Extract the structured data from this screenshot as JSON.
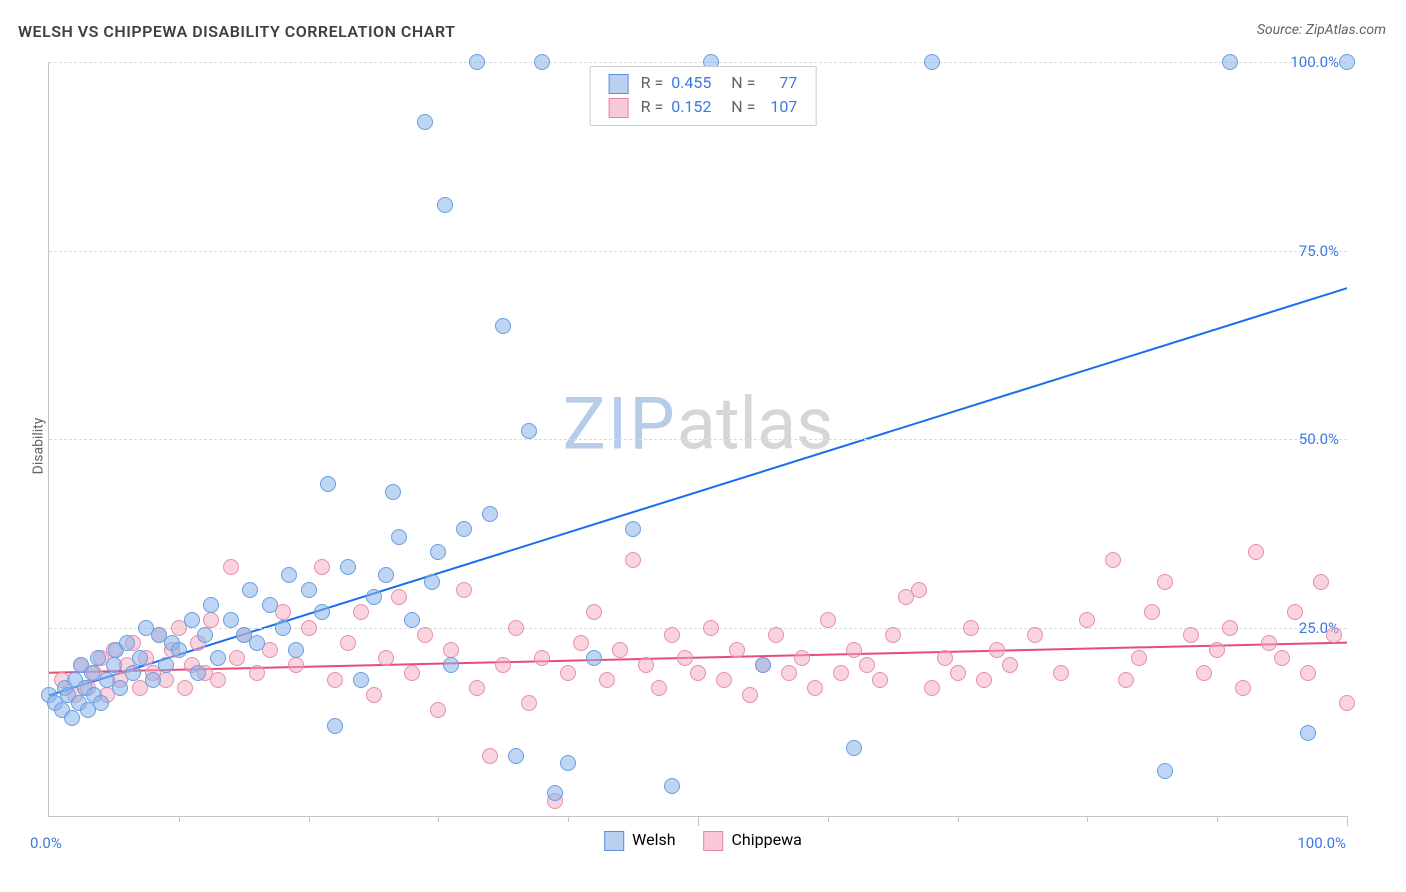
{
  "title": "WELSH VS CHIPPEWA DISABILITY CORRELATION CHART",
  "title_color": "#3c4043",
  "source_prefix": "Source: ",
  "source_name": "ZipAtlas.com",
  "source_color": "#5f6368",
  "ylabel": "Disability",
  "ylabel_color": "#5f6368",
  "watermark_zip": "ZIP",
  "watermark_atlas": "atlas",
  "watermark_zip_color": "#b7cce8",
  "watermark_atlas_color": "#d4d6d9",
  "plot": {
    "type": "scatter",
    "xlim": [
      0,
      100
    ],
    "ylim": [
      0,
      100
    ],
    "x_origin_label": "0.0%",
    "x_max_label": "100.0%",
    "axis_label_color": "#3b78e7",
    "grid_color": "#d9dde1",
    "grid_values": [
      25,
      50,
      75,
      100
    ],
    "yticks": [
      {
        "v": 25,
        "label": "25.0%"
      },
      {
        "v": 50,
        "label": "50.0%"
      },
      {
        "v": 75,
        "label": "75.0%"
      },
      {
        "v": 100,
        "label": "100.0%"
      }
    ],
    "xticks_minor": [
      10,
      20,
      30,
      40,
      60,
      70,
      80,
      90
    ],
    "xticks_major": [
      50,
      100
    ],
    "series1": {
      "name": "Welsh",
      "R": "0.455",
      "N": "77",
      "line_color": "#1a6ef0",
      "fill_color": "rgba(137,179,233,0.55)",
      "stroke_color": "#6a9fe0",
      "line_width": 2,
      "marker_radius": 7,
      "legend_fill": "#b9d1f1",
      "legend_stroke": "#5c8fe0",
      "trend_y_at_x0": 16,
      "trend_y_at_x100": 70,
      "points": [
        [
          0,
          16
        ],
        [
          0.5,
          15
        ],
        [
          1,
          14
        ],
        [
          1.2,
          17
        ],
        [
          1.5,
          16
        ],
        [
          1.8,
          13
        ],
        [
          2,
          18
        ],
        [
          2.3,
          15
        ],
        [
          2.5,
          20
        ],
        [
          2.8,
          17
        ],
        [
          3,
          14
        ],
        [
          3.3,
          19
        ],
        [
          3.5,
          16
        ],
        [
          3.8,
          21
        ],
        [
          4,
          15
        ],
        [
          4.5,
          18
        ],
        [
          5,
          20
        ],
        [
          5.2,
          22
        ],
        [
          5.5,
          17
        ],
        [
          6,
          23
        ],
        [
          6.5,
          19
        ],
        [
          7,
          21
        ],
        [
          7.5,
          25
        ],
        [
          8,
          18
        ],
        [
          8.5,
          24
        ],
        [
          9,
          20
        ],
        [
          9.5,
          23
        ],
        [
          10,
          22
        ],
        [
          11,
          26
        ],
        [
          11.5,
          19
        ],
        [
          12,
          24
        ],
        [
          12.5,
          28
        ],
        [
          13,
          21
        ],
        [
          14,
          26
        ],
        [
          15,
          24
        ],
        [
          15.5,
          30
        ],
        [
          16,
          23
        ],
        [
          17,
          28
        ],
        [
          18,
          25
        ],
        [
          18.5,
          32
        ],
        [
          19,
          22
        ],
        [
          20,
          30
        ],
        [
          21,
          27
        ],
        [
          21.5,
          44
        ],
        [
          22,
          12
        ],
        [
          23,
          33
        ],
        [
          24,
          18
        ],
        [
          25,
          29
        ],
        [
          26,
          32
        ],
        [
          26.5,
          43
        ],
        [
          27,
          37
        ],
        [
          28,
          26
        ],
        [
          29,
          92
        ],
        [
          29.5,
          31
        ],
        [
          30,
          35
        ],
        [
          30.5,
          81
        ],
        [
          31,
          20
        ],
        [
          32,
          38
        ],
        [
          33,
          100
        ],
        [
          34,
          40
        ],
        [
          35,
          65
        ],
        [
          36,
          8
        ],
        [
          37,
          51
        ],
        [
          38,
          100
        ],
        [
          39,
          3
        ],
        [
          40,
          7
        ],
        [
          42,
          21
        ],
        [
          45,
          38
        ],
        [
          48,
          4
        ],
        [
          51,
          100
        ],
        [
          55,
          20
        ],
        [
          62,
          9
        ],
        [
          68,
          100
        ],
        [
          86,
          6
        ],
        [
          91,
          100
        ],
        [
          97,
          11
        ],
        [
          100,
          100
        ]
      ]
    },
    "series2": {
      "name": "Chippewa",
      "R": "0.152",
      "N": "107",
      "line_color": "#e84c7d",
      "fill_color": "rgba(244,168,190,0.50)",
      "stroke_color": "#e68faa",
      "line_width": 2,
      "marker_radius": 7,
      "legend_fill": "#f7c8d6",
      "legend_stroke": "#e686a5",
      "trend_y_at_x0": 19,
      "trend_y_at_x100": 23,
      "points": [
        [
          1,
          18
        ],
        [
          2,
          16
        ],
        [
          2.5,
          20
        ],
        [
          3,
          17
        ],
        [
          3.5,
          19
        ],
        [
          4,
          21
        ],
        [
          4.5,
          16
        ],
        [
          5,
          22
        ],
        [
          5.5,
          18
        ],
        [
          6,
          20
        ],
        [
          6.5,
          23
        ],
        [
          7,
          17
        ],
        [
          7.5,
          21
        ],
        [
          8,
          19
        ],
        [
          8.5,
          24
        ],
        [
          9,
          18
        ],
        [
          9.5,
          22
        ],
        [
          10,
          25
        ],
        [
          10.5,
          17
        ],
        [
          11,
          20
        ],
        [
          11.5,
          23
        ],
        [
          12,
          19
        ],
        [
          12.5,
          26
        ],
        [
          13,
          18
        ],
        [
          14,
          33
        ],
        [
          14.5,
          21
        ],
        [
          15,
          24
        ],
        [
          16,
          19
        ],
        [
          17,
          22
        ],
        [
          18,
          27
        ],
        [
          19,
          20
        ],
        [
          20,
          25
        ],
        [
          21,
          33
        ],
        [
          22,
          18
        ],
        [
          23,
          23
        ],
        [
          24,
          27
        ],
        [
          25,
          16
        ],
        [
          26,
          21
        ],
        [
          27,
          29
        ],
        [
          28,
          19
        ],
        [
          29,
          24
        ],
        [
          30,
          14
        ],
        [
          31,
          22
        ],
        [
          32,
          30
        ],
        [
          33,
          17
        ],
        [
          34,
          8
        ],
        [
          35,
          20
        ],
        [
          36,
          25
        ],
        [
          37,
          15
        ],
        [
          38,
          21
        ],
        [
          39,
          2
        ],
        [
          40,
          19
        ],
        [
          41,
          23
        ],
        [
          42,
          27
        ],
        [
          43,
          18
        ],
        [
          44,
          22
        ],
        [
          45,
          34
        ],
        [
          46,
          20
        ],
        [
          47,
          17
        ],
        [
          48,
          24
        ],
        [
          49,
          21
        ],
        [
          50,
          19
        ],
        [
          51,
          25
        ],
        [
          52,
          18
        ],
        [
          53,
          22
        ],
        [
          54,
          16
        ],
        [
          55,
          20
        ],
        [
          56,
          24
        ],
        [
          57,
          19
        ],
        [
          58,
          21
        ],
        [
          59,
          17
        ],
        [
          60,
          26
        ],
        [
          61,
          19
        ],
        [
          62,
          22
        ],
        [
          63,
          20
        ],
        [
          64,
          18
        ],
        [
          65,
          24
        ],
        [
          66,
          29
        ],
        [
          67,
          30
        ],
        [
          68,
          17
        ],
        [
          69,
          21
        ],
        [
          70,
          19
        ],
        [
          71,
          25
        ],
        [
          72,
          18
        ],
        [
          73,
          22
        ],
        [
          74,
          20
        ],
        [
          76,
          24
        ],
        [
          78,
          19
        ],
        [
          80,
          26
        ],
        [
          82,
          34
        ],
        [
          83,
          18
        ],
        [
          84,
          21
        ],
        [
          85,
          27
        ],
        [
          86,
          31
        ],
        [
          88,
          24
        ],
        [
          89,
          19
        ],
        [
          90,
          22
        ],
        [
          91,
          25
        ],
        [
          92,
          17
        ],
        [
          93,
          35
        ],
        [
          94,
          23
        ],
        [
          95,
          21
        ],
        [
          96,
          27
        ],
        [
          97,
          19
        ],
        [
          98,
          31
        ],
        [
          99,
          24
        ],
        [
          100,
          15
        ]
      ]
    }
  },
  "legend_top_text": {
    "R_label": "R =",
    "N_label": "N ="
  },
  "legend_top_value_color": "#3b78e7",
  "legend_top_label_color": "#5f6368"
}
